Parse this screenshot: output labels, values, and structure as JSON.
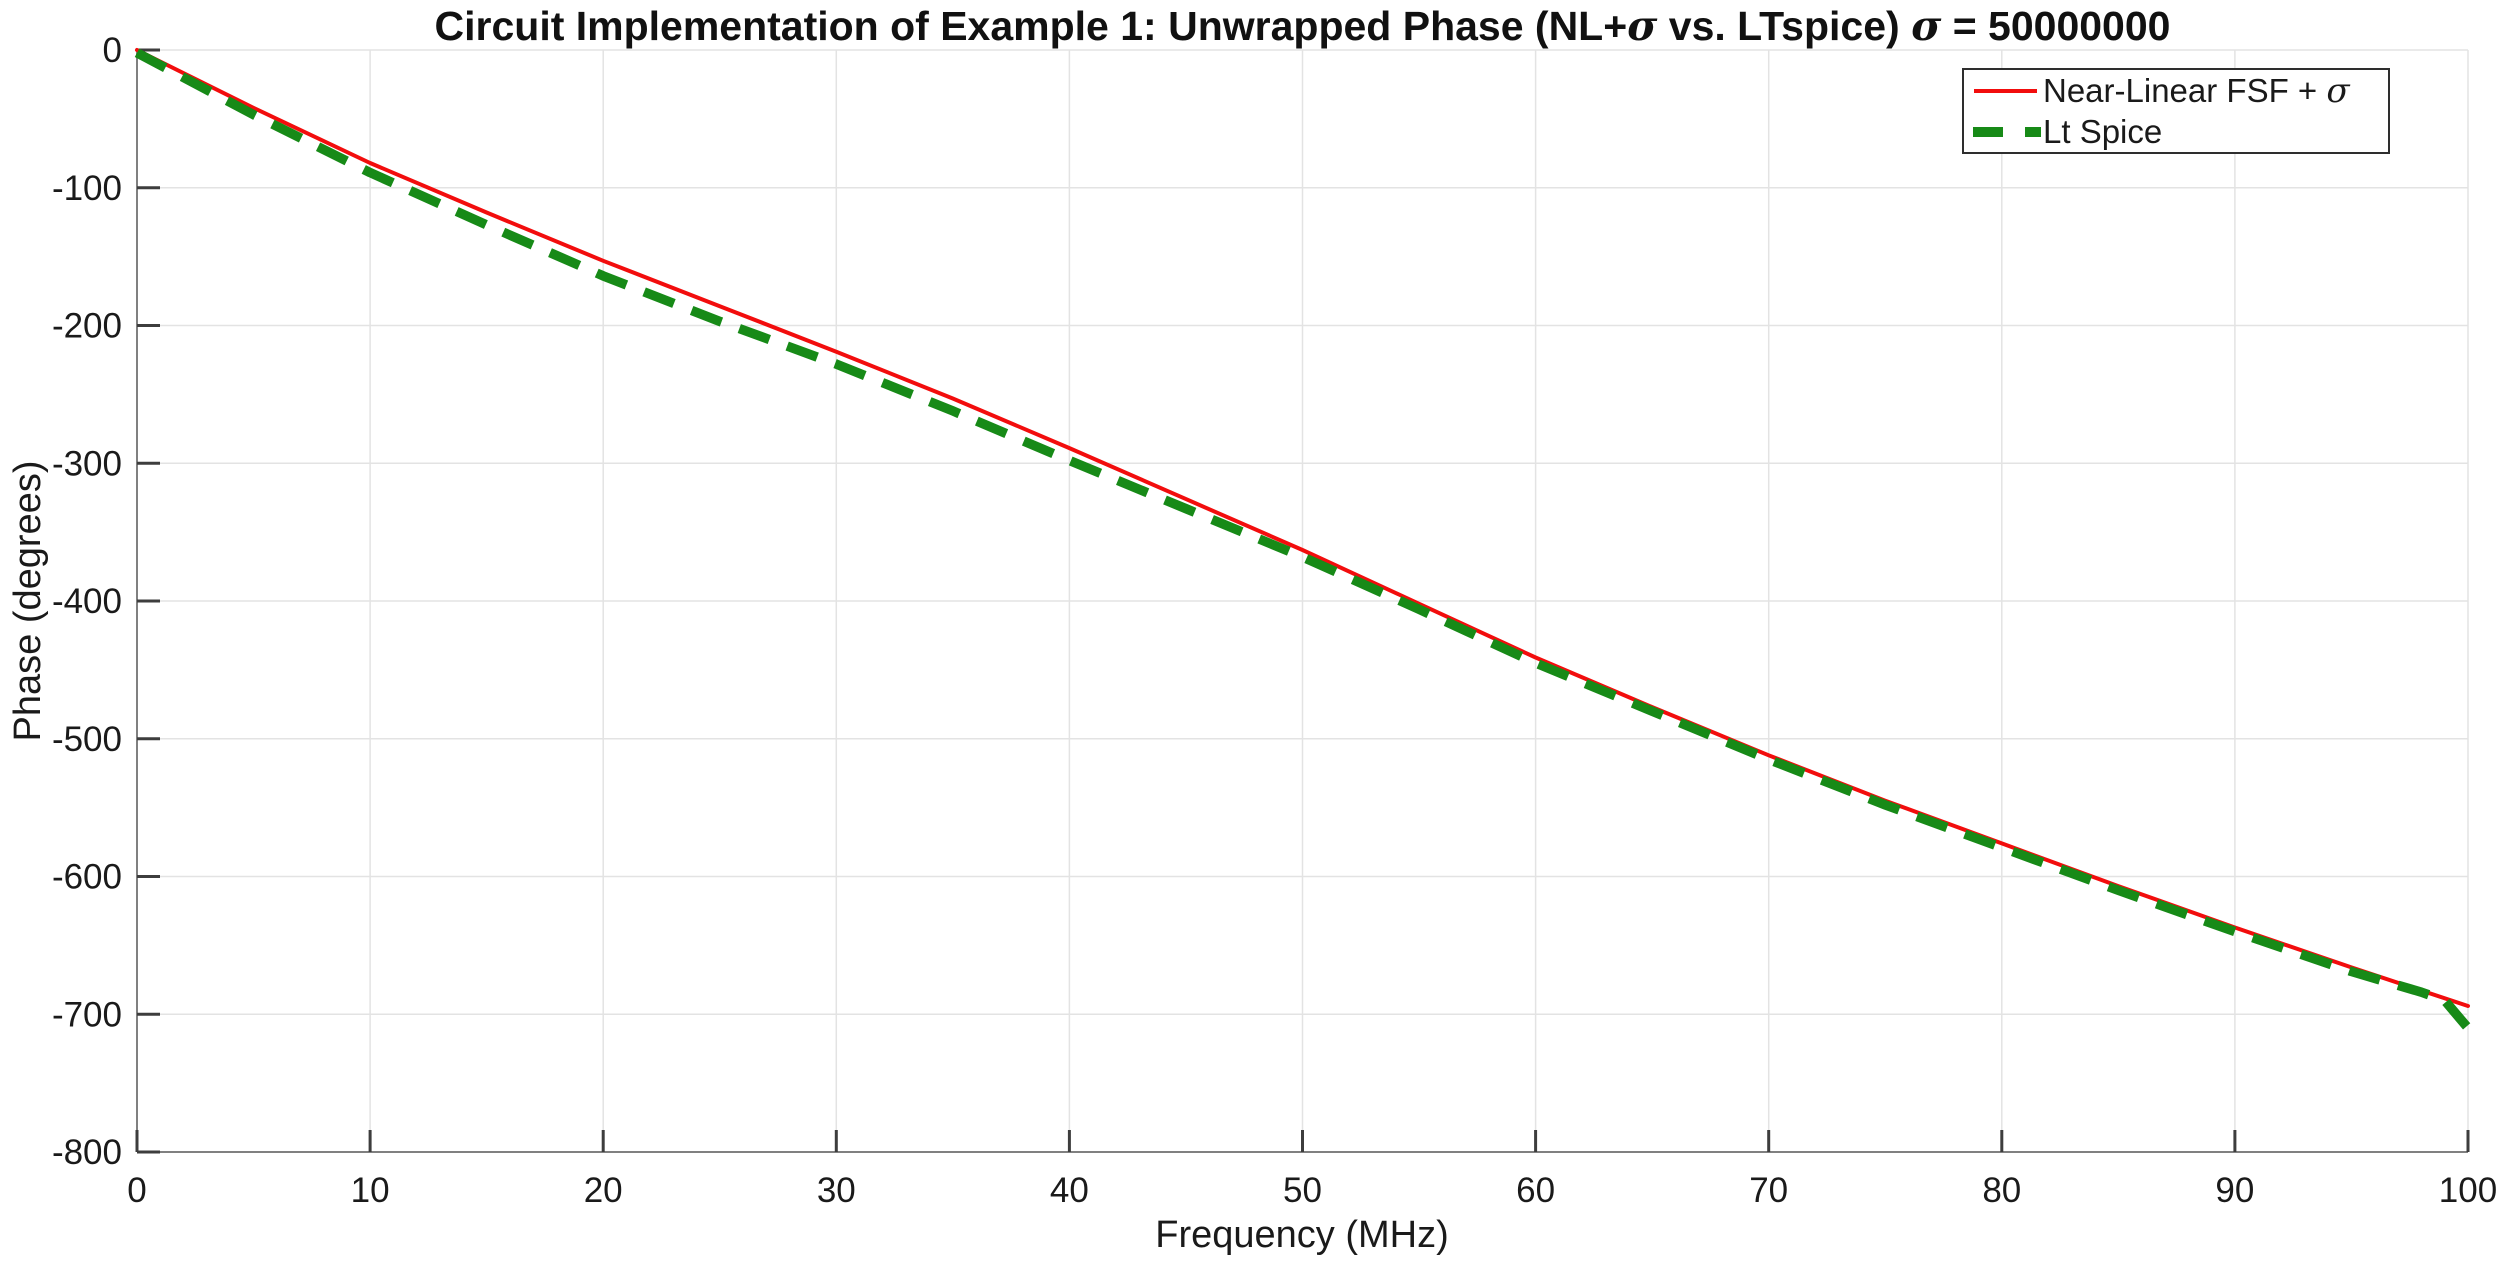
{
  "figure": {
    "title_parts": {
      "main": "Circuit Implementation of Example 1: Unwrapped Phase (NL+",
      "sigma1": "σ",
      "mid": " vs. LTspice) ",
      "sigma2": "σ",
      "end": " = 50000000"
    }
  },
  "chart_data": {
    "type": "line",
    "title": "Circuit Implementation of Example 1: Unwrapped Phase (NL+σ vs. LTspice) σ = 50000000",
    "xlabel": "Frequency (MHz)",
    "ylabel": "Phase (degrees)",
    "xlim": [
      0,
      100
    ],
    "ylim": [
      -800,
      0
    ],
    "x_ticks": [
      0,
      10,
      20,
      30,
      40,
      50,
      60,
      70,
      80,
      90,
      100
    ],
    "y_ticks": [
      0,
      -100,
      -200,
      -300,
      -400,
      -500,
      -600,
      -700,
      -800
    ],
    "grid": true,
    "legend": {
      "position": "top-right",
      "entries": [
        {
          "label": "Near-Linear FSF + σ",
          "label_prefix": "Near-Linear FSF + ",
          "label_sigma": "σ",
          "color": "#f20d0d",
          "style": "solid"
        },
        {
          "label": "Lt Spice",
          "label_prefix": "Lt Spice",
          "label_sigma": "",
          "color": "#178a17",
          "style": "dashed"
        }
      ]
    },
    "series": [
      {
        "name": "Near-Linear FSF + σ",
        "color": "#f20d0d",
        "line_style": "solid",
        "line_width": 4,
        "x": [
          0,
          5,
          10,
          15,
          20,
          25,
          30,
          35,
          40,
          45,
          50,
          55,
          60,
          65,
          70,
          75,
          80,
          85,
          90,
          95,
          100
        ],
        "y": [
          0,
          -42,
          -82,
          -118,
          -153,
          -186,
          -219,
          -253,
          -289,
          -326,
          -363,
          -402,
          -441,
          -477,
          -512,
          -545,
          -576,
          -607,
          -637,
          -666,
          -694
        ]
      },
      {
        "name": "Lt Spice",
        "color": "#178a17",
        "line_style": "dashed",
        "line_width": 9.5,
        "x": [
          0,
          5,
          10,
          15,
          20,
          25,
          30,
          35,
          40,
          45,
          50,
          55,
          60,
          65,
          70,
          75,
          80,
          85,
          90,
          95,
          98,
          99,
          100
        ],
        "y": [
          -2,
          -47,
          -89,
          -127,
          -164,
          -197,
          -228,
          -262,
          -298,
          -333,
          -368,
          -406,
          -445,
          -480,
          -515,
          -548,
          -579,
          -610,
          -640,
          -669,
          -684,
          -690,
          -710
        ]
      }
    ],
    "style": {
      "axis_line_color": "#808080",
      "tick_color": "#3d3d3d",
      "grid_color": "#e3e3e3",
      "tick_label_color": "#1a1a1a",
      "dash_pattern": "32 19"
    }
  }
}
